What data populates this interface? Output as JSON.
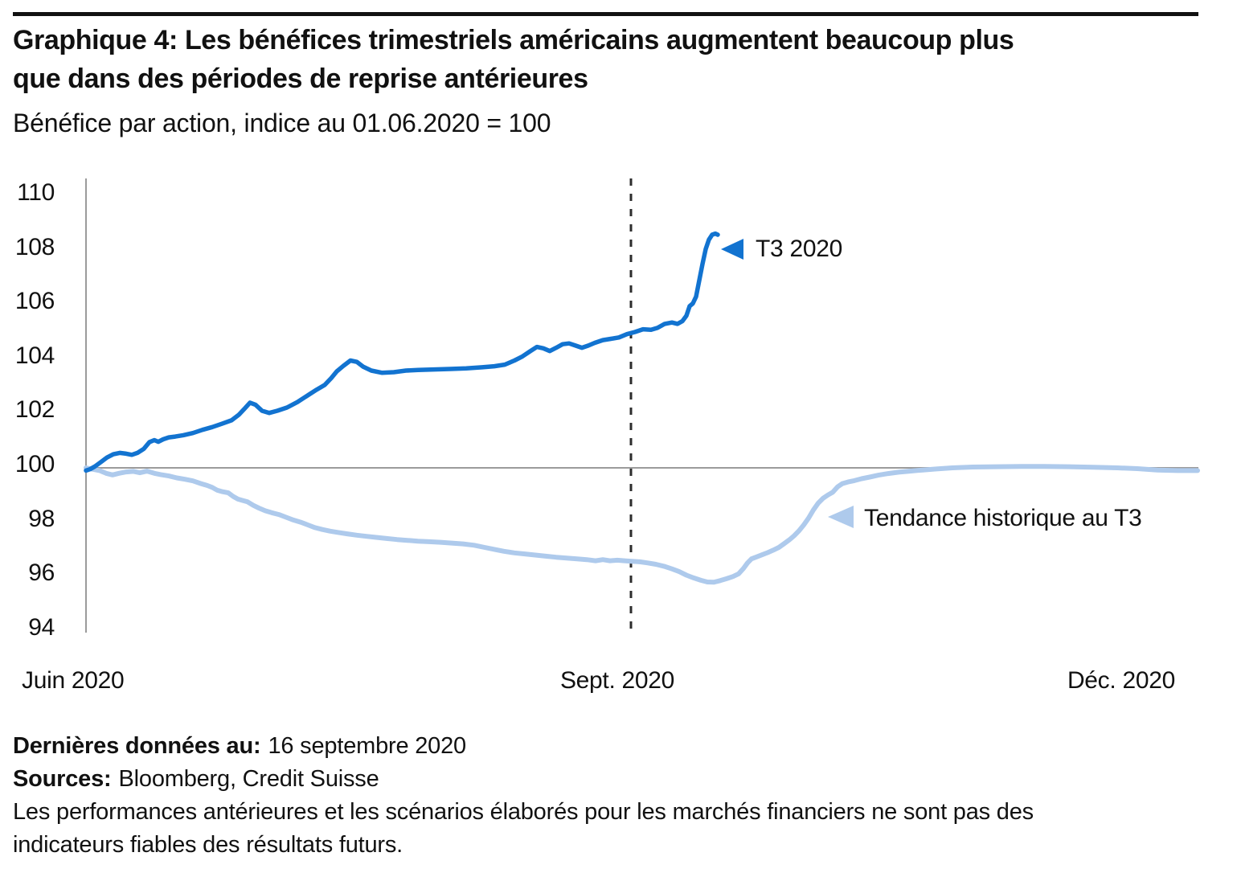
{
  "chart_data": {
    "type": "line",
    "title": "Graphique 4: Les bénéfices trimestriels américains augmentent beaucoup plus\nque dans des périodes de reprise antérieures",
    "subtitle": "Bénéfice par action, indice au 01.06.2020 = 100",
    "xlabel": "",
    "ylabel": "",
    "ylim": [
      94,
      110
    ],
    "grid": "off",
    "baseline_value": 100,
    "dashed_vertical_line_at": "Sept. 2020",
    "y_axis": {
      "ticks": [
        "110",
        "108",
        "106",
        "104",
        "102",
        "100",
        "98",
        "96",
        "94"
      ]
    },
    "x_axis": {
      "labels": [
        "Juin 2020",
        "Sept. 2020",
        "Déc. 2020"
      ]
    },
    "axis_color": "#9b9b9b",
    "dashed_line_color": "#2d2d2d",
    "series": [
      {
        "name": "T3 2020",
        "color": "#1273d0",
        "points": [
          [
            107,
            99.9
          ],
          [
            112,
            99.95
          ],
          [
            118,
            100.05
          ],
          [
            125,
            100.2
          ],
          [
            133,
            100.38
          ],
          [
            141,
            100.5
          ],
          [
            149,
            100.55
          ],
          [
            157,
            100.52
          ],
          [
            164,
            100.48
          ],
          [
            171,
            100.55
          ],
          [
            179,
            100.7
          ],
          [
            186,
            100.95
          ],
          [
            192,
            101.02
          ],
          [
            197,
            100.96
          ],
          [
            203,
            101.05
          ],
          [
            210,
            101.12
          ],
          [
            218,
            101.15
          ],
          [
            228,
            101.2
          ],
          [
            240,
            101.28
          ],
          [
            252,
            101.4
          ],
          [
            264,
            101.5
          ],
          [
            276,
            101.62
          ],
          [
            288,
            101.75
          ],
          [
            297,
            101.95
          ],
          [
            305,
            102.2
          ],
          [
            311,
            102.4
          ],
          [
            318,
            102.32
          ],
          [
            326,
            102.1
          ],
          [
            335,
            102.02
          ],
          [
            345,
            102.1
          ],
          [
            357,
            102.22
          ],
          [
            370,
            102.42
          ],
          [
            382,
            102.65
          ],
          [
            394,
            102.88
          ],
          [
            404,
            103.05
          ],
          [
            412,
            103.3
          ],
          [
            419,
            103.55
          ],
          [
            427,
            103.75
          ],
          [
            436,
            103.95
          ],
          [
            444,
            103.9
          ],
          [
            452,
            103.72
          ],
          [
            462,
            103.58
          ],
          [
            475,
            103.5
          ],
          [
            490,
            103.52
          ],
          [
            505,
            103.58
          ],
          [
            520,
            103.6
          ],
          [
            540,
            103.62
          ],
          [
            560,
            103.64
          ],
          [
            580,
            103.66
          ],
          [
            600,
            103.7
          ],
          [
            615,
            103.74
          ],
          [
            628,
            103.8
          ],
          [
            640,
            103.95
          ],
          [
            650,
            104.1
          ],
          [
            660,
            104.3
          ],
          [
            668,
            104.45
          ],
          [
            676,
            104.4
          ],
          [
            684,
            104.3
          ],
          [
            692,
            104.42
          ],
          [
            700,
            104.55
          ],
          [
            708,
            104.58
          ],
          [
            716,
            104.5
          ],
          [
            724,
            104.42
          ],
          [
            732,
            104.5
          ],
          [
            740,
            104.6
          ],
          [
            750,
            104.7
          ],
          [
            760,
            104.75
          ],
          [
            770,
            104.8
          ],
          [
            780,
            104.92
          ],
          [
            790,
            105.0
          ],
          [
            800,
            105.1
          ],
          [
            810,
            105.08
          ],
          [
            818,
            105.15
          ],
          [
            827,
            105.3
          ],
          [
            836,
            105.35
          ],
          [
            843,
            105.3
          ],
          [
            849,
            105.4
          ],
          [
            854,
            105.6
          ],
          [
            858,
            105.95
          ],
          [
            862,
            106.05
          ],
          [
            866,
            106.3
          ],
          [
            870,
            106.9
          ],
          [
            874,
            107.5
          ],
          [
            878,
            108.05
          ],
          [
            882,
            108.4
          ],
          [
            886,
            108.58
          ],
          [
            890,
            108.62
          ],
          [
            893,
            108.58
          ]
        ]
      },
      {
        "name": "Tendance historique au T3",
        "color": "#aecaec",
        "points": [
          [
            107,
            100.0
          ],
          [
            115,
            99.95
          ],
          [
            124,
            99.9
          ],
          [
            132,
            99.8
          ],
          [
            140,
            99.74
          ],
          [
            148,
            99.8
          ],
          [
            157,
            99.85
          ],
          [
            166,
            99.87
          ],
          [
            174,
            99.82
          ],
          [
            183,
            99.88
          ],
          [
            192,
            99.8
          ],
          [
            200,
            99.75
          ],
          [
            210,
            99.7
          ],
          [
            220,
            99.63
          ],
          [
            230,
            99.58
          ],
          [
            240,
            99.52
          ],
          [
            250,
            99.42
          ],
          [
            258,
            99.35
          ],
          [
            264,
            99.28
          ],
          [
            270,
            99.18
          ],
          [
            277,
            99.12
          ],
          [
            284,
            99.08
          ],
          [
            290,
            98.95
          ],
          [
            296,
            98.85
          ],
          [
            302,
            98.8
          ],
          [
            308,
            98.75
          ],
          [
            315,
            98.62
          ],
          [
            322,
            98.52
          ],
          [
            330,
            98.42
          ],
          [
            338,
            98.35
          ],
          [
            347,
            98.28
          ],
          [
            356,
            98.18
          ],
          [
            365,
            98.08
          ],
          [
            374,
            98.0
          ],
          [
            383,
            97.9
          ],
          [
            392,
            97.8
          ],
          [
            401,
            97.73
          ],
          [
            411,
            97.67
          ],
          [
            421,
            97.62
          ],
          [
            432,
            97.57
          ],
          [
            444,
            97.52
          ],
          [
            456,
            97.48
          ],
          [
            468,
            97.44
          ],
          [
            481,
            97.4
          ],
          [
            494,
            97.36
          ],
          [
            507,
            97.33
          ],
          [
            520,
            97.3
          ],
          [
            534,
            97.28
          ],
          [
            548,
            97.26
          ],
          [
            562,
            97.23
          ],
          [
            576,
            97.2
          ],
          [
            590,
            97.15
          ],
          [
            603,
            97.07
          ],
          [
            615,
            97.0
          ],
          [
            627,
            96.93
          ],
          [
            640,
            96.87
          ],
          [
            653,
            96.83
          ],
          [
            666,
            96.79
          ],
          [
            679,
            96.75
          ],
          [
            692,
            96.71
          ],
          [
            705,
            96.68
          ],
          [
            718,
            96.65
          ],
          [
            730,
            96.62
          ],
          [
            741,
            96.58
          ],
          [
            750,
            96.62
          ],
          [
            759,
            96.58
          ],
          [
            768,
            96.6
          ],
          [
            777,
            96.58
          ],
          [
            786,
            96.56
          ],
          [
            796,
            96.54
          ],
          [
            806,
            96.5
          ],
          [
            816,
            96.45
          ],
          [
            826,
            96.38
          ],
          [
            836,
            96.28
          ],
          [
            845,
            96.18
          ],
          [
            854,
            96.05
          ],
          [
            863,
            95.95
          ],
          [
            872,
            95.86
          ],
          [
            880,
            95.8
          ],
          [
            888,
            95.79
          ],
          [
            896,
            95.85
          ],
          [
            904,
            95.92
          ],
          [
            912,
            96.0
          ],
          [
            919,
            96.1
          ],
          [
            925,
            96.3
          ],
          [
            930,
            96.5
          ],
          [
            935,
            96.65
          ],
          [
            941,
            96.72
          ],
          [
            948,
            96.8
          ],
          [
            955,
            96.88
          ],
          [
            962,
            96.97
          ],
          [
            969,
            97.07
          ],
          [
            976,
            97.22
          ],
          [
            982,
            97.35
          ],
          [
            988,
            97.5
          ],
          [
            994,
            97.68
          ],
          [
            1000,
            97.9
          ],
          [
            1006,
            98.15
          ],
          [
            1012,
            98.45
          ],
          [
            1018,
            98.7
          ],
          [
            1024,
            98.88
          ],
          [
            1030,
            99.0
          ],
          [
            1036,
            99.1
          ],
          [
            1042,
            99.3
          ],
          [
            1048,
            99.42
          ],
          [
            1055,
            99.48
          ],
          [
            1063,
            99.53
          ],
          [
            1072,
            99.6
          ],
          [
            1082,
            99.66
          ],
          [
            1093,
            99.73
          ],
          [
            1105,
            99.79
          ],
          [
            1118,
            99.84
          ],
          [
            1132,
            99.88
          ],
          [
            1148,
            99.92
          ],
          [
            1165,
            99.96
          ],
          [
            1185,
            100.0
          ],
          [
            1210,
            100.03
          ],
          [
            1240,
            100.04
          ],
          [
            1270,
            100.05
          ],
          [
            1300,
            100.05
          ],
          [
            1330,
            100.04
          ],
          [
            1360,
            100.02
          ],
          [
            1390,
            100.0
          ],
          [
            1415,
            99.97
          ],
          [
            1440,
            99.92
          ],
          [
            1465,
            99.9
          ],
          [
            1490,
            99.9
          ]
        ]
      }
    ]
  },
  "footer": {
    "last_data_label": "Dernières données au:",
    "last_data_value": "16 septembre 2020",
    "sources_label": "Sources:",
    "sources_value": "Bloomberg, Credit Suisse",
    "disclaimer": "Les performances antérieures et les scénarios élaborés pour les marchés financiers ne sont pas des\nindicateurs fiables des résultats futurs."
  }
}
